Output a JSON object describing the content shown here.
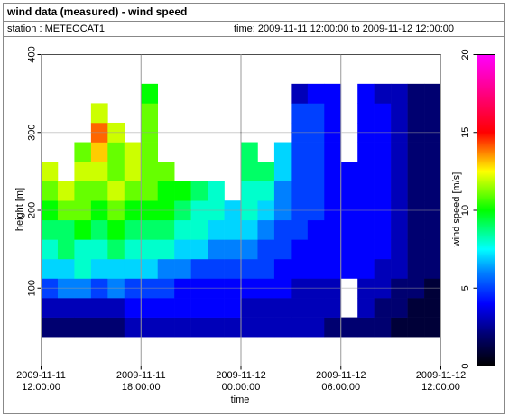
{
  "chart_data": {
    "type": "heatmap",
    "title": "wind data (measured) - wind speed",
    "station": "station : METEOCAT1",
    "time_range": "time: 2009-11-11 12:00:00 to 2009-11-12 12:00:00",
    "x_label": "time",
    "y_label": "height [m]",
    "colorbar_label": "wind speed [m/s]",
    "x": [
      "2009-11-11 12:00:00",
      "2009-11-11 13:00:00",
      "2009-11-11 14:00:00",
      "2009-11-11 15:00:00",
      "2009-11-11 16:00:00",
      "2009-11-11 17:00:00",
      "2009-11-11 18:00:00",
      "2009-11-11 19:00:00",
      "2009-11-11 20:00:00",
      "2009-11-11 21:00:00",
      "2009-11-11 22:00:00",
      "2009-11-11 23:00:00",
      "2009-11-12 00:00:00",
      "2009-11-12 01:00:00",
      "2009-11-12 02:00:00",
      "2009-11-12 03:00:00",
      "2009-11-12 04:00:00",
      "2009-11-12 05:00:00",
      "2009-11-12 06:00:00",
      "2009-11-12 07:00:00",
      "2009-11-12 08:00:00",
      "2009-11-12 09:00:00",
      "2009-11-12 10:00:00",
      "2009-11-12 11:00:00"
    ],
    "x_step_hours": 1,
    "y": [
      50,
      75,
      100,
      125,
      150,
      175,
      200,
      225,
      250,
      275,
      300,
      325,
      350
    ],
    "y_step": 25,
    "z": [
      [
        2,
        2,
        2,
        2,
        2,
        3,
        3,
        3,
        3,
        3,
        3,
        3,
        3,
        3,
        3,
        3,
        3,
        2,
        2,
        2,
        2,
        1,
        1,
        1
      ],
      [
        3,
        3,
        3,
        3,
        3,
        4,
        4,
        4,
        4,
        4,
        4,
        4,
        3,
        3,
        3,
        3,
        3,
        3,
        null,
        3,
        2,
        2,
        1,
        1
      ],
      [
        5,
        6,
        6,
        5,
        6,
        5,
        5,
        5,
        4,
        4,
        4,
        4,
        4,
        4,
        4,
        3,
        3,
        3,
        null,
        3,
        3,
        2,
        2,
        1
      ],
      [
        7,
        7,
        8,
        7,
        7,
        7,
        7,
        6,
        6,
        5,
        5,
        5,
        5,
        5,
        4,
        4,
        4,
        4,
        4,
        4,
        3,
        3,
        2,
        2
      ],
      [
        8,
        9,
        8,
        8,
        9,
        8,
        8,
        8,
        7,
        7,
        6,
        6,
        6,
        5,
        5,
        4,
        4,
        4,
        4,
        4,
        4,
        3,
        2,
        2
      ],
      [
        9,
        9,
        10,
        9,
        10,
        9,
        9,
        9,
        8,
        8,
        7,
        7,
        7,
        6,
        5,
        5,
        4,
        4,
        4,
        4,
        4,
        3,
        2,
        2
      ],
      [
        10,
        11,
        11,
        10,
        11,
        10,
        10,
        10,
        9,
        8,
        8,
        7,
        8,
        7,
        6,
        5,
        5,
        4,
        4,
        4,
        4,
        3,
        2,
        2
      ],
      [
        11,
        12,
        11,
        11,
        12,
        11,
        11,
        10,
        10,
        9,
        8,
        null,
        8,
        8,
        6,
        5,
        5,
        4,
        4,
        4,
        4,
        3,
        2,
        2
      ],
      [
        12,
        null,
        12,
        12,
        11,
        12,
        11,
        11,
        null,
        null,
        null,
        null,
        9,
        9,
        7,
        5,
        5,
        4,
        4,
        4,
        4,
        3,
        2,
        2
      ],
      [
        null,
        null,
        11,
        13,
        11,
        12,
        11,
        null,
        null,
        null,
        null,
        null,
        9,
        null,
        7,
        5,
        5,
        4,
        null,
        4,
        4,
        3,
        2,
        2
      ],
      [
        null,
        null,
        null,
        14,
        12,
        null,
        11,
        null,
        null,
        null,
        null,
        null,
        null,
        null,
        null,
        5,
        5,
        4,
        null,
        4,
        4,
        3,
        2,
        2
      ],
      [
        null,
        null,
        null,
        12,
        null,
        null,
        11,
        null,
        null,
        null,
        null,
        null,
        null,
        null,
        null,
        5,
        5,
        4,
        null,
        4,
        4,
        3,
        2,
        2
      ],
      [
        null,
        null,
        null,
        null,
        null,
        null,
        10,
        null,
        null,
        null,
        null,
        null,
        null,
        null,
        null,
        3,
        4,
        4,
        null,
        4,
        3,
        3,
        2,
        2
      ]
    ],
    "xlim": [
      "2009-11-11 12:00:00",
      "2009-11-12 12:00:00"
    ],
    "xticks": [
      "2009-11-11 12:00:00",
      "2009-11-11 18:00:00",
      "2009-11-12 00:00:00",
      "2009-11-12 06:00:00",
      "2009-11-12 12:00:00"
    ],
    "ylim": [
      0,
      400
    ],
    "yticks": [
      100,
      200,
      300,
      400
    ],
    "clim": [
      0,
      20
    ],
    "cticks": [
      0,
      5,
      10,
      15,
      20
    ],
    "colormap": [
      [
        0,
        "#000000"
      ],
      [
        2,
        "#000070"
      ],
      [
        4,
        "#0000ff"
      ],
      [
        6,
        "#0080ff"
      ],
      [
        7.5,
        "#00ffff"
      ],
      [
        10,
        "#00ff00"
      ],
      [
        12.5,
        "#ffff00"
      ],
      [
        15,
        "#ff0000"
      ],
      [
        20,
        "#ff00ff"
      ]
    ],
    "grid": true
  }
}
